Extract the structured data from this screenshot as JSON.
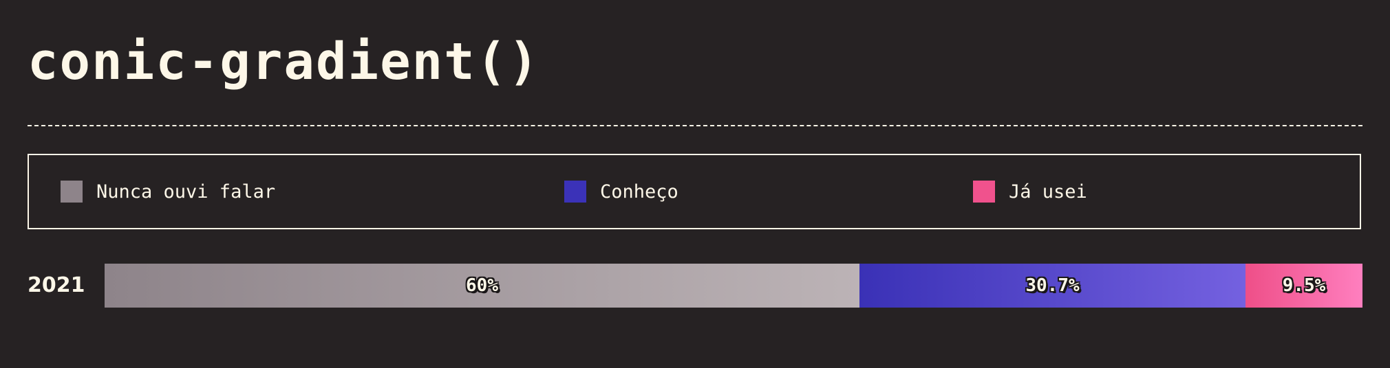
{
  "header": {
    "title": "conic-gradient()"
  },
  "chart_data": {
    "type": "bar",
    "orientation": "horizontal",
    "stacked": true,
    "title": "conic-gradient()",
    "categories": [
      "2021"
    ],
    "xlim": [
      0,
      100
    ],
    "grid": false,
    "legend_position": "top",
    "series": [
      {
        "name": "Nunca ouvi falar",
        "values": [
          60
        ],
        "labels": [
          "60%"
        ],
        "color": "#8e848a",
        "gradient": [
          "#8e848a",
          "#bcb3b6"
        ]
      },
      {
        "name": "Conheço",
        "values": [
          30.7
        ],
        "labels": [
          "30.7%"
        ],
        "color": "#3b32b8",
        "gradient": [
          "#3a31b6",
          "#7461e0"
        ]
      },
      {
        "name": "Já usei",
        "values": [
          9.5
        ],
        "labels": [
          "9.5%"
        ],
        "color": "#f0528d",
        "gradient": [
          "#ee4f88",
          "#ff7fbf"
        ]
      }
    ]
  }
}
